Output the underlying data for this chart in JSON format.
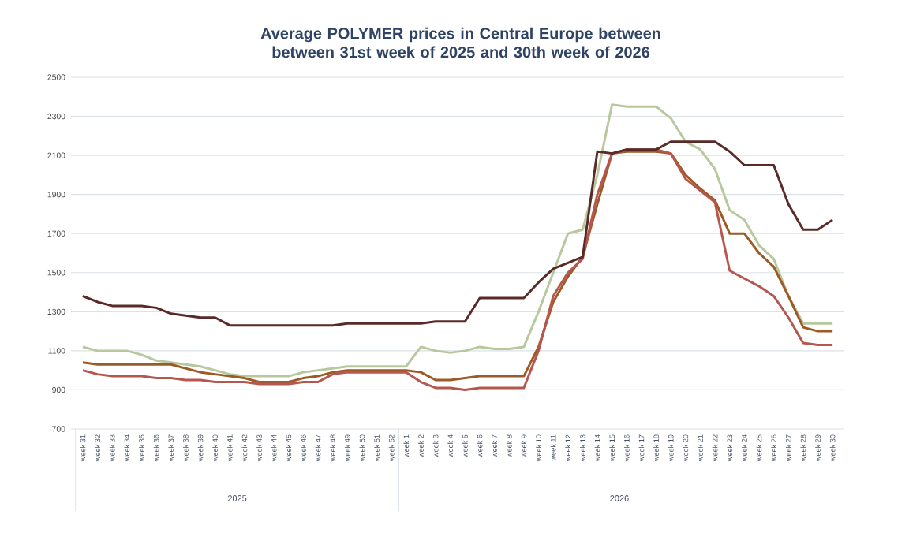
{
  "chart_data": {
    "type": "line",
    "title": "Average POLYMER prices in Central Europe between between 31st week of 2025 and 30th week of 2026",
    "categories": [
      "week 31",
      "week 32",
      "week 33",
      "week 34",
      "week 35",
      "week 36",
      "week 37",
      "week 38",
      "week 39",
      "week 40",
      "week 41",
      "week 42",
      "week 43",
      "week 44",
      "week 45",
      "week 46",
      "week 47",
      "week 48",
      "week 49",
      "week 50",
      "week 51",
      "week 52",
      "week 1",
      "week 2",
      "week 3",
      "week 4",
      "week 5",
      "week 6",
      "week 7",
      "week 8",
      "week 9",
      "week 10",
      "week 11",
      "week 12",
      "week 13",
      "week 14",
      "week 15",
      "week 16",
      "week 17",
      "week 18",
      "week 19",
      "week 20",
      "week 21",
      "week 22",
      "week 23",
      "week 24",
      "week 25",
      "week 26",
      "week 27",
      "week 28",
      "week 29",
      "week 30"
    ],
    "series": [
      {
        "color": "#b7c89c",
        "values": [
          1120,
          1100,
          1100,
          1100,
          1080,
          1050,
          1040,
          1030,
          1020,
          1000,
          980,
          970,
          970,
          970,
          970,
          990,
          1000,
          1010,
          1020,
          1020,
          1020,
          1020,
          1020,
          1120,
          1100,
          1090,
          1100,
          1120,
          1110,
          1110,
          1120,
          1300,
          1500,
          1700,
          1720,
          2000,
          2360,
          2350,
          2350,
          2350,
          2290,
          2170,
          2130,
          2030,
          1820,
          1770,
          1640,
          1570,
          1380,
          1240,
          1240,
          1240
        ]
      },
      {
        "color": "#9e5a26",
        "values": [
          1040,
          1030,
          1030,
          1030,
          1030,
          1030,
          1030,
          1010,
          990,
          980,
          970,
          960,
          940,
          940,
          940,
          960,
          970,
          990,
          1000,
          1000,
          1000,
          1000,
          1000,
          990,
          950,
          950,
          960,
          970,
          970,
          970,
          970,
          1120,
          1350,
          1480,
          1580,
          1850,
          2110,
          2120,
          2120,
          2120,
          2110,
          2000,
          1930,
          1870,
          1700,
          1700,
          1600,
          1530,
          1380,
          1220,
          1200,
          1200
        ]
      },
      {
        "color": "#b5574f",
        "values": [
          1000,
          980,
          970,
          970,
          970,
          960,
          960,
          950,
          950,
          940,
          940,
          940,
          930,
          930,
          930,
          940,
          940,
          980,
          990,
          990,
          990,
          990,
          990,
          940,
          910,
          910,
          900,
          910,
          910,
          910,
          910,
          1100,
          1380,
          1500,
          1570,
          1900,
          2110,
          2130,
          2130,
          2130,
          2110,
          1980,
          1920,
          1860,
          1510,
          1470,
          1430,
          1380,
          1270,
          1140,
          1130,
          1130
        ]
      },
      {
        "color": "#5a2a28",
        "values": [
          1380,
          1350,
          1330,
          1330,
          1330,
          1320,
          1290,
          1280,
          1270,
          1270,
          1230,
          1230,
          1230,
          1230,
          1230,
          1230,
          1230,
          1230,
          1240,
          1240,
          1240,
          1240,
          1240,
          1240,
          1250,
          1250,
          1250,
          1370,
          1370,
          1370,
          1370,
          1450,
          1520,
          1550,
          1580,
          2120,
          2110,
          2130,
          2130,
          2130,
          2170,
          2170,
          2170,
          2170,
          2120,
          2050,
          2050,
          2050,
          1850,
          1720,
          1720,
          1770
        ]
      }
    ],
    "ylim": [
      700,
      2500
    ],
    "yticks": [
      700,
      900,
      1100,
      1300,
      1500,
      1700,
      1900,
      2100,
      2300,
      2500
    ],
    "grid": "y",
    "marker": "none",
    "line_style": "solid",
    "annotations": [
      "2025",
      "2026"
    ]
  }
}
